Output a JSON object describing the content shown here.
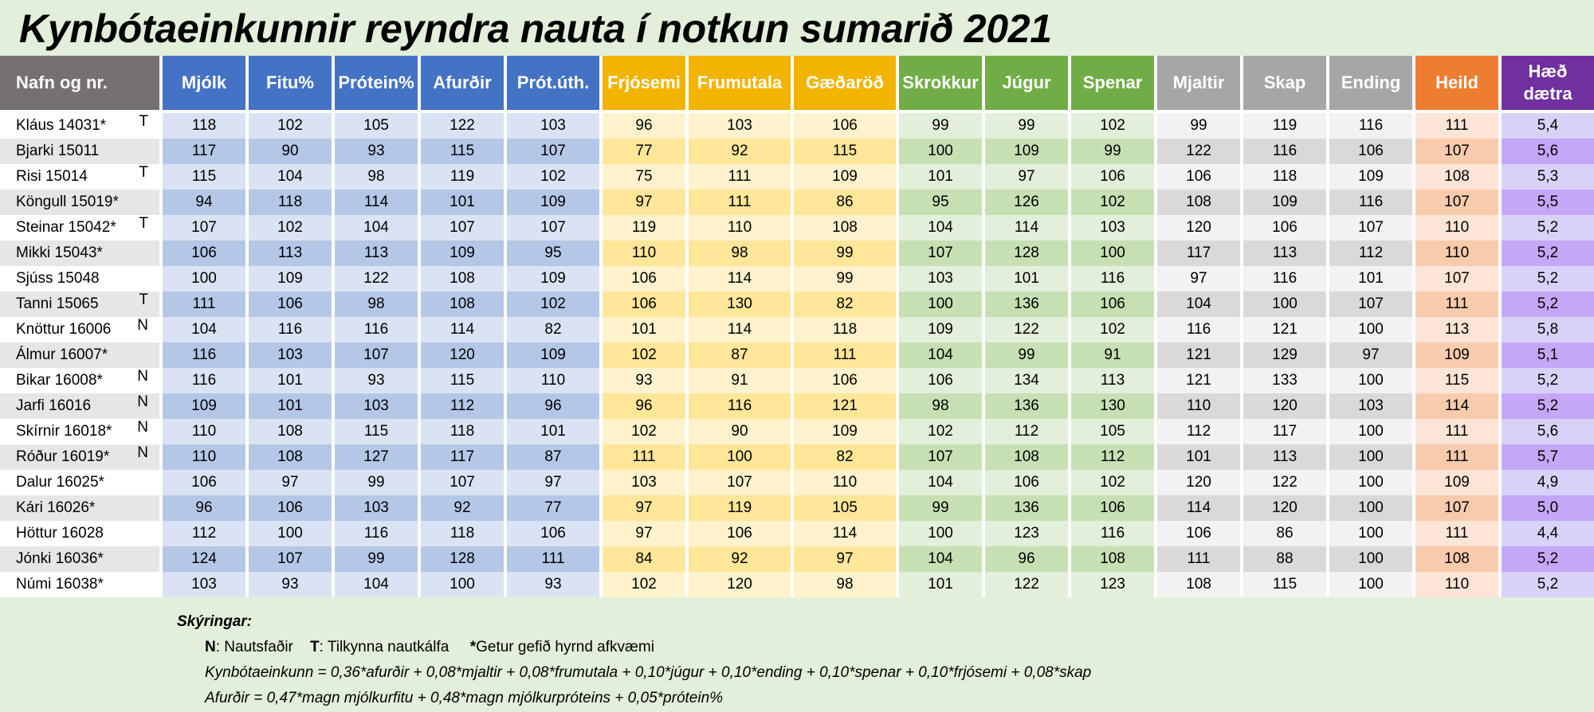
{
  "title": "Kynbótaeinkunnir reyndra nauta í notkun sumarið 2021",
  "columns": [
    {
      "label": "Nafn og nr."
    },
    {
      "label": "Mjólk",
      "head": "#4472c4",
      "odd": "#dae3f3",
      "even": "#b4c7e7"
    },
    {
      "label": "Fitu%",
      "head": "#4472c4",
      "odd": "#dae3f3",
      "even": "#b4c7e7"
    },
    {
      "label": "Prótein%",
      "head": "#4472c4",
      "odd": "#dae3f3",
      "even": "#b4c7e7"
    },
    {
      "label": "Afurðir",
      "head": "#4472c4",
      "odd": "#dae3f3",
      "even": "#b4c7e7"
    },
    {
      "label": "Prót.úth.",
      "head": "#4472c4",
      "odd": "#dae3f3",
      "even": "#b4c7e7"
    },
    {
      "label": "Frjósemi",
      "head": "#f2b400",
      "odd": "#fff2cc",
      "even": "#ffe699"
    },
    {
      "label": "Frumutala",
      "head": "#f2b400",
      "odd": "#fff2cc",
      "even": "#ffe699"
    },
    {
      "label": "Gæðaröð",
      "head": "#f2b400",
      "odd": "#fff2cc",
      "even": "#ffe699"
    },
    {
      "label": "Skrokkur",
      "head": "#70ad47",
      "odd": "#e2efda",
      "even": "#c6e0b4"
    },
    {
      "label": "Júgur",
      "head": "#70ad47",
      "odd": "#e2efda",
      "even": "#c6e0b4"
    },
    {
      "label": "Spenar",
      "head": "#70ad47",
      "odd": "#e2efda",
      "even": "#c6e0b4"
    },
    {
      "label": "Mjaltir",
      "head": "#a6a6a6",
      "odd": "#f2f2f2",
      "even": "#d9d9d9"
    },
    {
      "label": "Skap",
      "head": "#a6a6a6",
      "odd": "#f2f2f2",
      "even": "#d9d9d9"
    },
    {
      "label": "Ending",
      "head": "#a6a6a6",
      "odd": "#f2f2f2",
      "even": "#d9d9d9"
    },
    {
      "label": "Heild",
      "head": "#ed7d31",
      "odd": "#fce4d6",
      "even": "#f8cbad"
    },
    {
      "label": "Hæð dætra",
      "head": "#7030a0",
      "odd": "#d9d2f8",
      "even": "#c5a7f7"
    }
  ],
  "name_colors": {
    "odd": "#ffffff",
    "even": "#e6e6e6"
  },
  "rows": [
    {
      "name": "Kláus 14031*",
      "mark": "T",
      "values": [
        "118",
        "102",
        "105",
        "122",
        "103",
        "96",
        "103",
        "106",
        "99",
        "99",
        "102",
        "99",
        "119",
        "116",
        "111",
        "5,4"
      ]
    },
    {
      "name": "Bjarki 15011",
      "mark": "",
      "values": [
        "117",
        "90",
        "93",
        "115",
        "107",
        "77",
        "92",
        "115",
        "100",
        "109",
        "99",
        "122",
        "116",
        "106",
        "107",
        "5,6"
      ]
    },
    {
      "name": "Risi 15014",
      "mark": "T",
      "values": [
        "115",
        "104",
        "98",
        "119",
        "102",
        "75",
        "111",
        "109",
        "101",
        "97",
        "106",
        "106",
        "118",
        "109",
        "108",
        "5,3"
      ]
    },
    {
      "name": "Köngull 15019*",
      "mark": "",
      "values": [
        "94",
        "118",
        "114",
        "101",
        "109",
        "97",
        "111",
        "86",
        "95",
        "126",
        "102",
        "108",
        "109",
        "116",
        "107",
        "5,5"
      ]
    },
    {
      "name": "Steinar 15042*",
      "mark": "T",
      "values": [
        "107",
        "102",
        "104",
        "107",
        "107",
        "119",
        "110",
        "108",
        "104",
        "114",
        "103",
        "120",
        "106",
        "107",
        "110",
        "5,2"
      ]
    },
    {
      "name": "Mikki 15043*",
      "mark": "",
      "values": [
        "106",
        "113",
        "113",
        "109",
        "95",
        "110",
        "98",
        "99",
        "107",
        "128",
        "100",
        "117",
        "113",
        "112",
        "110",
        "5,2"
      ]
    },
    {
      "name": "Sjúss 15048",
      "mark": "",
      "values": [
        "100",
        "109",
        "122",
        "108",
        "109",
        "106",
        "114",
        "99",
        "103",
        "101",
        "116",
        "97",
        "116",
        "101",
        "107",
        "5,2"
      ]
    },
    {
      "name": "Tanni 15065",
      "mark": "T",
      "values": [
        "111",
        "106",
        "98",
        "108",
        "102",
        "106",
        "130",
        "82",
        "100",
        "136",
        "106",
        "104",
        "100",
        "107",
        "111",
        "5,2"
      ]
    },
    {
      "name": "Knöttur 16006",
      "mark": "N",
      "values": [
        "104",
        "116",
        "116",
        "114",
        "82",
        "101",
        "114",
        "118",
        "109",
        "122",
        "102",
        "116",
        "121",
        "100",
        "113",
        "5,8"
      ]
    },
    {
      "name": "Álmur 16007*",
      "mark": "",
      "values": [
        "116",
        "103",
        "107",
        "120",
        "109",
        "102",
        "87",
        "111",
        "104",
        "99",
        "91",
        "121",
        "129",
        "97",
        "109",
        "5,1"
      ]
    },
    {
      "name": "Bikar 16008*",
      "mark": "N",
      "values": [
        "116",
        "101",
        "93",
        "115",
        "110",
        "93",
        "91",
        "106",
        "106",
        "134",
        "113",
        "121",
        "133",
        "100",
        "115",
        "5,2"
      ]
    },
    {
      "name": "Jarfi 16016",
      "mark": "N",
      "values": [
        "109",
        "101",
        "103",
        "112",
        "96",
        "96",
        "116",
        "121",
        "98",
        "136",
        "130",
        "110",
        "120",
        "103",
        "114",
        "5,2"
      ]
    },
    {
      "name": "Skírnir 16018*",
      "mark": "N",
      "values": [
        "110",
        "108",
        "115",
        "118",
        "101",
        "102",
        "90",
        "109",
        "102",
        "112",
        "105",
        "112",
        "117",
        "100",
        "111",
        "5,6"
      ]
    },
    {
      "name": "Róður 16019*",
      "mark": "N",
      "values": [
        "110",
        "108",
        "127",
        "117",
        "87",
        "111",
        "100",
        "82",
        "107",
        "108",
        "112",
        "101",
        "113",
        "100",
        "111",
        "5,7"
      ]
    },
    {
      "name": "Dalur 16025*",
      "mark": "",
      "values": [
        "106",
        "97",
        "99",
        "107",
        "97",
        "103",
        "107",
        "110",
        "104",
        "106",
        "102",
        "120",
        "122",
        "100",
        "109",
        "4,9"
      ]
    },
    {
      "name": "Kári 16026*",
      "mark": "",
      "values": [
        "96",
        "106",
        "103",
        "92",
        "77",
        "97",
        "119",
        "105",
        "99",
        "136",
        "106",
        "114",
        "120",
        "100",
        "107",
        "5,0"
      ]
    },
    {
      "name": "Höttur 16028",
      "mark": "",
      "values": [
        "112",
        "100",
        "116",
        "118",
        "106",
        "97",
        "106",
        "114",
        "100",
        "123",
        "116",
        "106",
        "86",
        "100",
        "111",
        "4,4"
      ]
    },
    {
      "name": "Jónki 16036*",
      "mark": "",
      "values": [
        "124",
        "107",
        "99",
        "128",
        "111",
        "84",
        "92",
        "97",
        "104",
        "96",
        "108",
        "111",
        "88",
        "100",
        "108",
        "5,2"
      ]
    },
    {
      "name": "Númi 16038*",
      "mark": "",
      "values": [
        "103",
        "93",
        "104",
        "100",
        "93",
        "102",
        "120",
        "98",
        "101",
        "122",
        "123",
        "108",
        "115",
        "100",
        "110",
        "5,2"
      ]
    }
  ],
  "footer": {
    "legend_title": "Skýringar:",
    "n_key": "N",
    "n_text": ": Nautsfaðir",
    "t_key": "T",
    "t_text": ": Tilkynna nautkálfa",
    "star_key": "*",
    "star_text": "Getur gefið hyrnd afkvæmi",
    "formula_1": "Kynbótaeinkunn = 0,36*afurðir + 0,08*mjaltir + 0,08*frumutala + 0,10*júgur + 0,10*ending + 0,10*spenar + 0,10*frjósemi + 0,08*skap",
    "formula_2": "Afurðir = 0,47*magn mjólkurfitu + 0,48*magn mjólkurpróteins + 0,05*prótein%"
  }
}
